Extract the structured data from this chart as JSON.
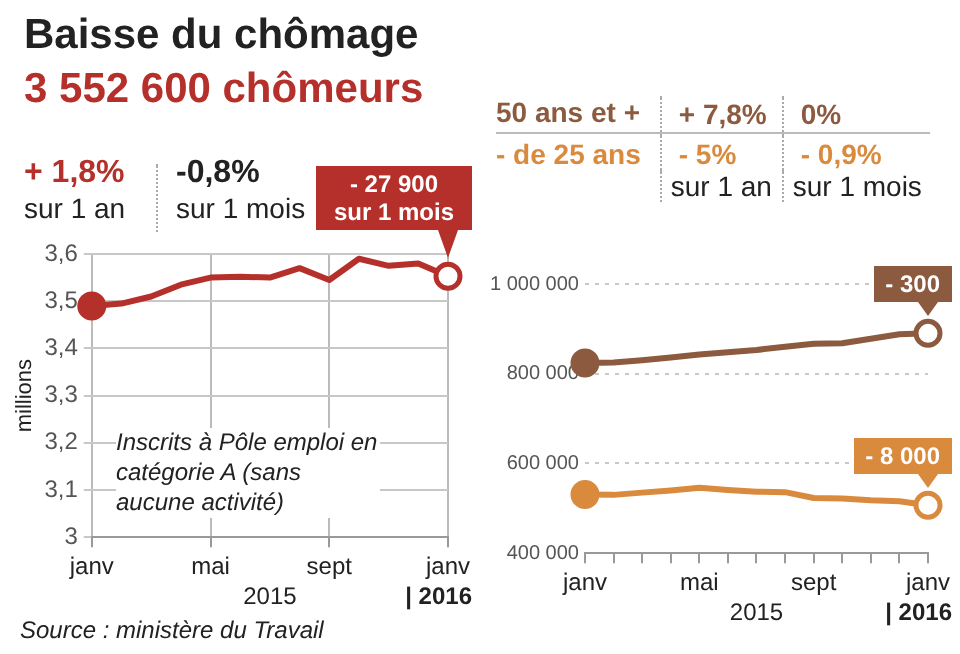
{
  "chart_data": [
    {
      "type": "line",
      "title": "Baisse du chômage",
      "subtitle": "3 552 600 chômeurs",
      "ylabel": "millions",
      "x": [
        "2015-01",
        "2015-02",
        "2015-03",
        "2015-04",
        "2015-05",
        "2015-06",
        "2015-07",
        "2015-08",
        "2015-09",
        "2015-10",
        "2015-11",
        "2015-12",
        "2016-01"
      ],
      "series": [
        {
          "color": "#b5302b",
          "values": [
            3.49,
            3.495,
            3.51,
            3.535,
            3.55,
            3.552,
            3.55,
            3.57,
            3.545,
            3.59,
            3.575,
            3.58,
            3.553
          ]
        }
      ],
      "xlim": [
        "2015-01",
        "2016-01"
      ],
      "xticks": [
        {
          "value": "2015-01",
          "label": "janv"
        },
        {
          "value": "2015-05",
          "label": "mai"
        },
        {
          "value": "2015-09",
          "label": "sept"
        },
        {
          "value": "2016-01",
          "label": "janv"
        }
      ],
      "ylim": [
        3,
        3.6
      ],
      "yticks": [
        3,
        {
          "value": 3.1,
          "label": "3,1"
        },
        {
          "value": 3.2,
          "label": "3,2"
        },
        {
          "value": 3.3,
          "label": "3,3"
        },
        {
          "value": 3.4,
          "label": "3,4"
        },
        {
          "value": 3.5,
          "label": "3,5"
        },
        {
          "value": 3.6,
          "label": "3,6"
        }
      ],
      "grid": true,
      "line_style": "solid",
      "annotations": [
        "+ 1,8%",
        "sur 1 an",
        "-0,8%",
        "sur 1 mois",
        {
          "text": "- 27 900 sur 1 mois",
          "x": "2016-01",
          "y": 3.553
        },
        "Inscrits à Pôle emploi en catégorie A (sans aucune activité)",
        "2015",
        "| 2016",
        "Source : ministère du Travail"
      ]
    },
    {
      "type": "line",
      "x": [
        "2015-01",
        "2015-02",
        "2015-03",
        "2015-04",
        "2015-05",
        "2015-06",
        "2015-07",
        "2015-08",
        "2015-09",
        "2015-10",
        "2015-11",
        "2015-12",
        "2016-01"
      ],
      "series": [
        {
          "name": "50 ans et +",
          "color": "#8c5a3e",
          "values": [
            824000,
            825000,
            830000,
            836000,
            843000,
            848000,
            853000,
            860000,
            867000,
            868000,
            878000,
            888000,
            890000
          ]
        },
        {
          "name": "- de 25 ans",
          "color": "#d98a3d",
          "values": [
            531000,
            530000,
            535000,
            540000,
            546000,
            541000,
            537000,
            536000,
            523000,
            522000,
            518000,
            516000,
            507000
          ]
        }
      ],
      "xlim": [
        "2015-01",
        "2016-01"
      ],
      "xticks": [
        {
          "value": "2015-01",
          "label": "janv"
        },
        {
          "value": "2015-02",
          "label": null
        },
        {
          "value": "2015-03",
          "label": null
        },
        {
          "value": "2015-04",
          "label": null
        },
        {
          "value": "2015-05",
          "label": "mai"
        },
        {
          "value": "2015-06",
          "label": null
        },
        {
          "value": "2015-07",
          "label": null
        },
        {
          "value": "2015-08",
          "label": null
        },
        {
          "value": "2015-09",
          "label": "sept"
        },
        {
          "value": "2015-10",
          "label": null
        },
        {
          "value": "2015-11",
          "label": null
        },
        {
          "value": "2015-12",
          "label": null
        },
        {
          "value": "2016-01",
          "label": "janv"
        }
      ],
      "ylim": [
        400000,
        1000000
      ],
      "yticks": [
        {
          "value": 400000,
          "label": "400 000"
        },
        {
          "value": 600000,
          "label": "600 000"
        },
        {
          "value": 800000,
          "label": "800 000"
        },
        {
          "value": 1000000,
          "label": "1 000 000"
        }
      ],
      "grid": "y",
      "line_style": "solid",
      "annotations": [
        "+ 7,8%",
        "0%",
        "- 5%",
        "- 0,9%",
        "sur 1 an",
        "sur 1 mois",
        {
          "text": "- 300",
          "x": "2016-01",
          "y": 890000
        },
        {
          "text": "- 8 000",
          "x": "2016-01",
          "y": 507000
        },
        "2015",
        "| 2016"
      ]
    }
  ]
}
